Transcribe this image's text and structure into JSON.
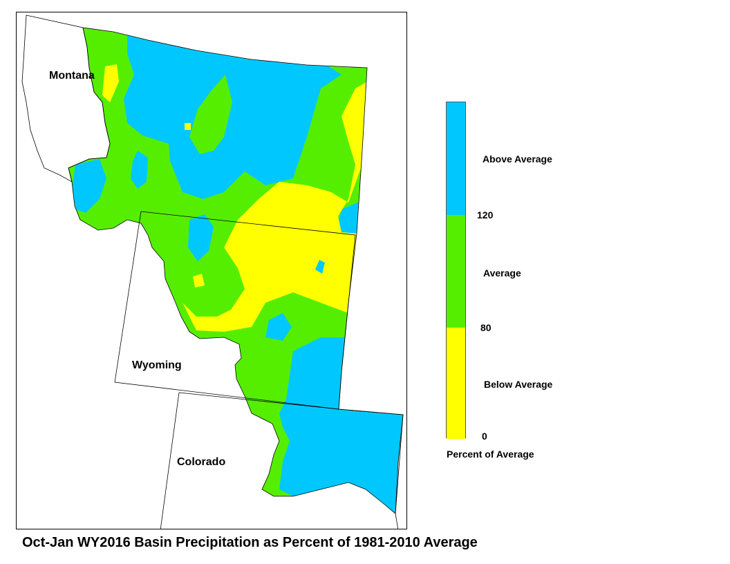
{
  "title": "Oct-Jan WY2016 Basin Precipitation as Percent of 1981-2010 Average",
  "states": {
    "montana": "Montana",
    "wyoming": "Wyoming",
    "colorado": "Colorado"
  },
  "legend": {
    "title": "Percent of Average",
    "categories": [
      {
        "label": "Above Average",
        "color": "#00c8ff",
        "min": 120
      },
      {
        "label": "Average",
        "color": "#55ee00",
        "min": 80,
        "max": 120
      },
      {
        "label": "Below Average",
        "color": "#ffff00",
        "min": 0,
        "max": 80
      }
    ],
    "ticks": [
      "120",
      "80",
      "0"
    ]
  },
  "colors": {
    "above": "#00c8ff",
    "average": "#55ee00",
    "below": "#ffff00",
    "outline": "#000000"
  }
}
